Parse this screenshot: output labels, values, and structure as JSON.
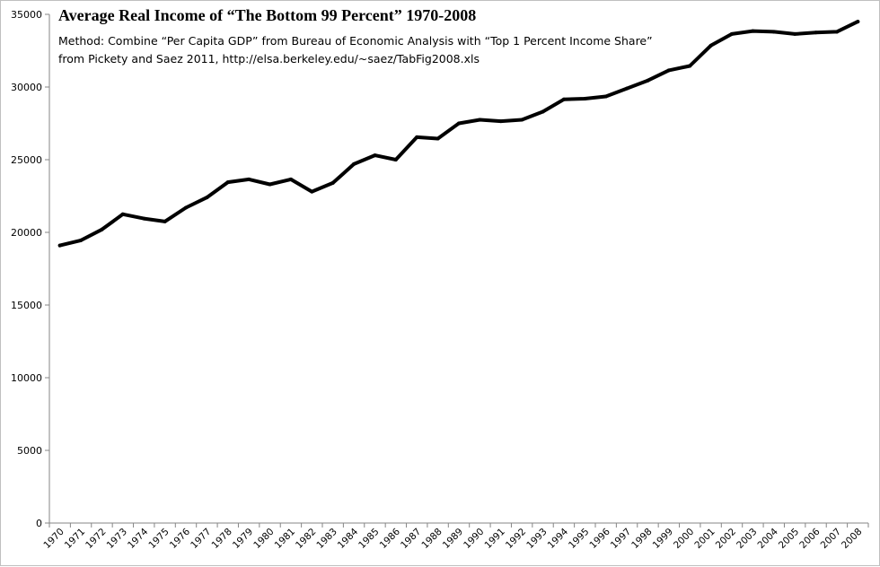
{
  "chart_data": {
    "type": "line",
    "title": "Average Real Income of “The Bottom 99 Percent” 1970-2008",
    "subtitle_lines": [
      "Method: Combine “Per Capita GDP” from Bureau of Economic Analysis with “Top 1 Percent Income Share”",
      "from Pickety and Saez 2011, http://elsa.berkeley.edu/~saez/TabFig2008.xls"
    ],
    "xlabel": "",
    "ylabel": "",
    "ylim": [
      0,
      35000
    ],
    "ytick_step": 5000,
    "yticks": [
      "0",
      "5000",
      "10000",
      "15000",
      "20000",
      "25000",
      "30000",
      "35000"
    ],
    "grid": false,
    "legend": "none",
    "line_color": "#000000",
    "categories": [
      "1970",
      "1971",
      "1972",
      "1973",
      "1974",
      "1975",
      "1976",
      "1977",
      "1978",
      "1979",
      "1980",
      "1981",
      "1982",
      "1983",
      "1984",
      "1985",
      "1986",
      "1987",
      "1988",
      "1989",
      "1990",
      "1991",
      "1992",
      "1993",
      "1994",
      "1995",
      "1996",
      "1997",
      "1998",
      "1999",
      "2000",
      "2001",
      "2002",
      "2003",
      "2004",
      "2005",
      "2006",
      "2007",
      "2008"
    ],
    "series": [
      {
        "values": [
          19100,
          19450,
          20200,
          21250,
          20950,
          20750,
          21700,
          22400,
          23450,
          23650,
          23300,
          23650,
          22800,
          23400,
          24700,
          25300,
          25000,
          26550,
          26450,
          27500,
          27750,
          27650,
          27750,
          28300,
          29150,
          29200,
          29350,
          29900,
          30450,
          31150,
          31450,
          32850,
          33650,
          33850,
          33800,
          33650,
          33750,
          33800,
          34500
        ]
      }
    ]
  }
}
